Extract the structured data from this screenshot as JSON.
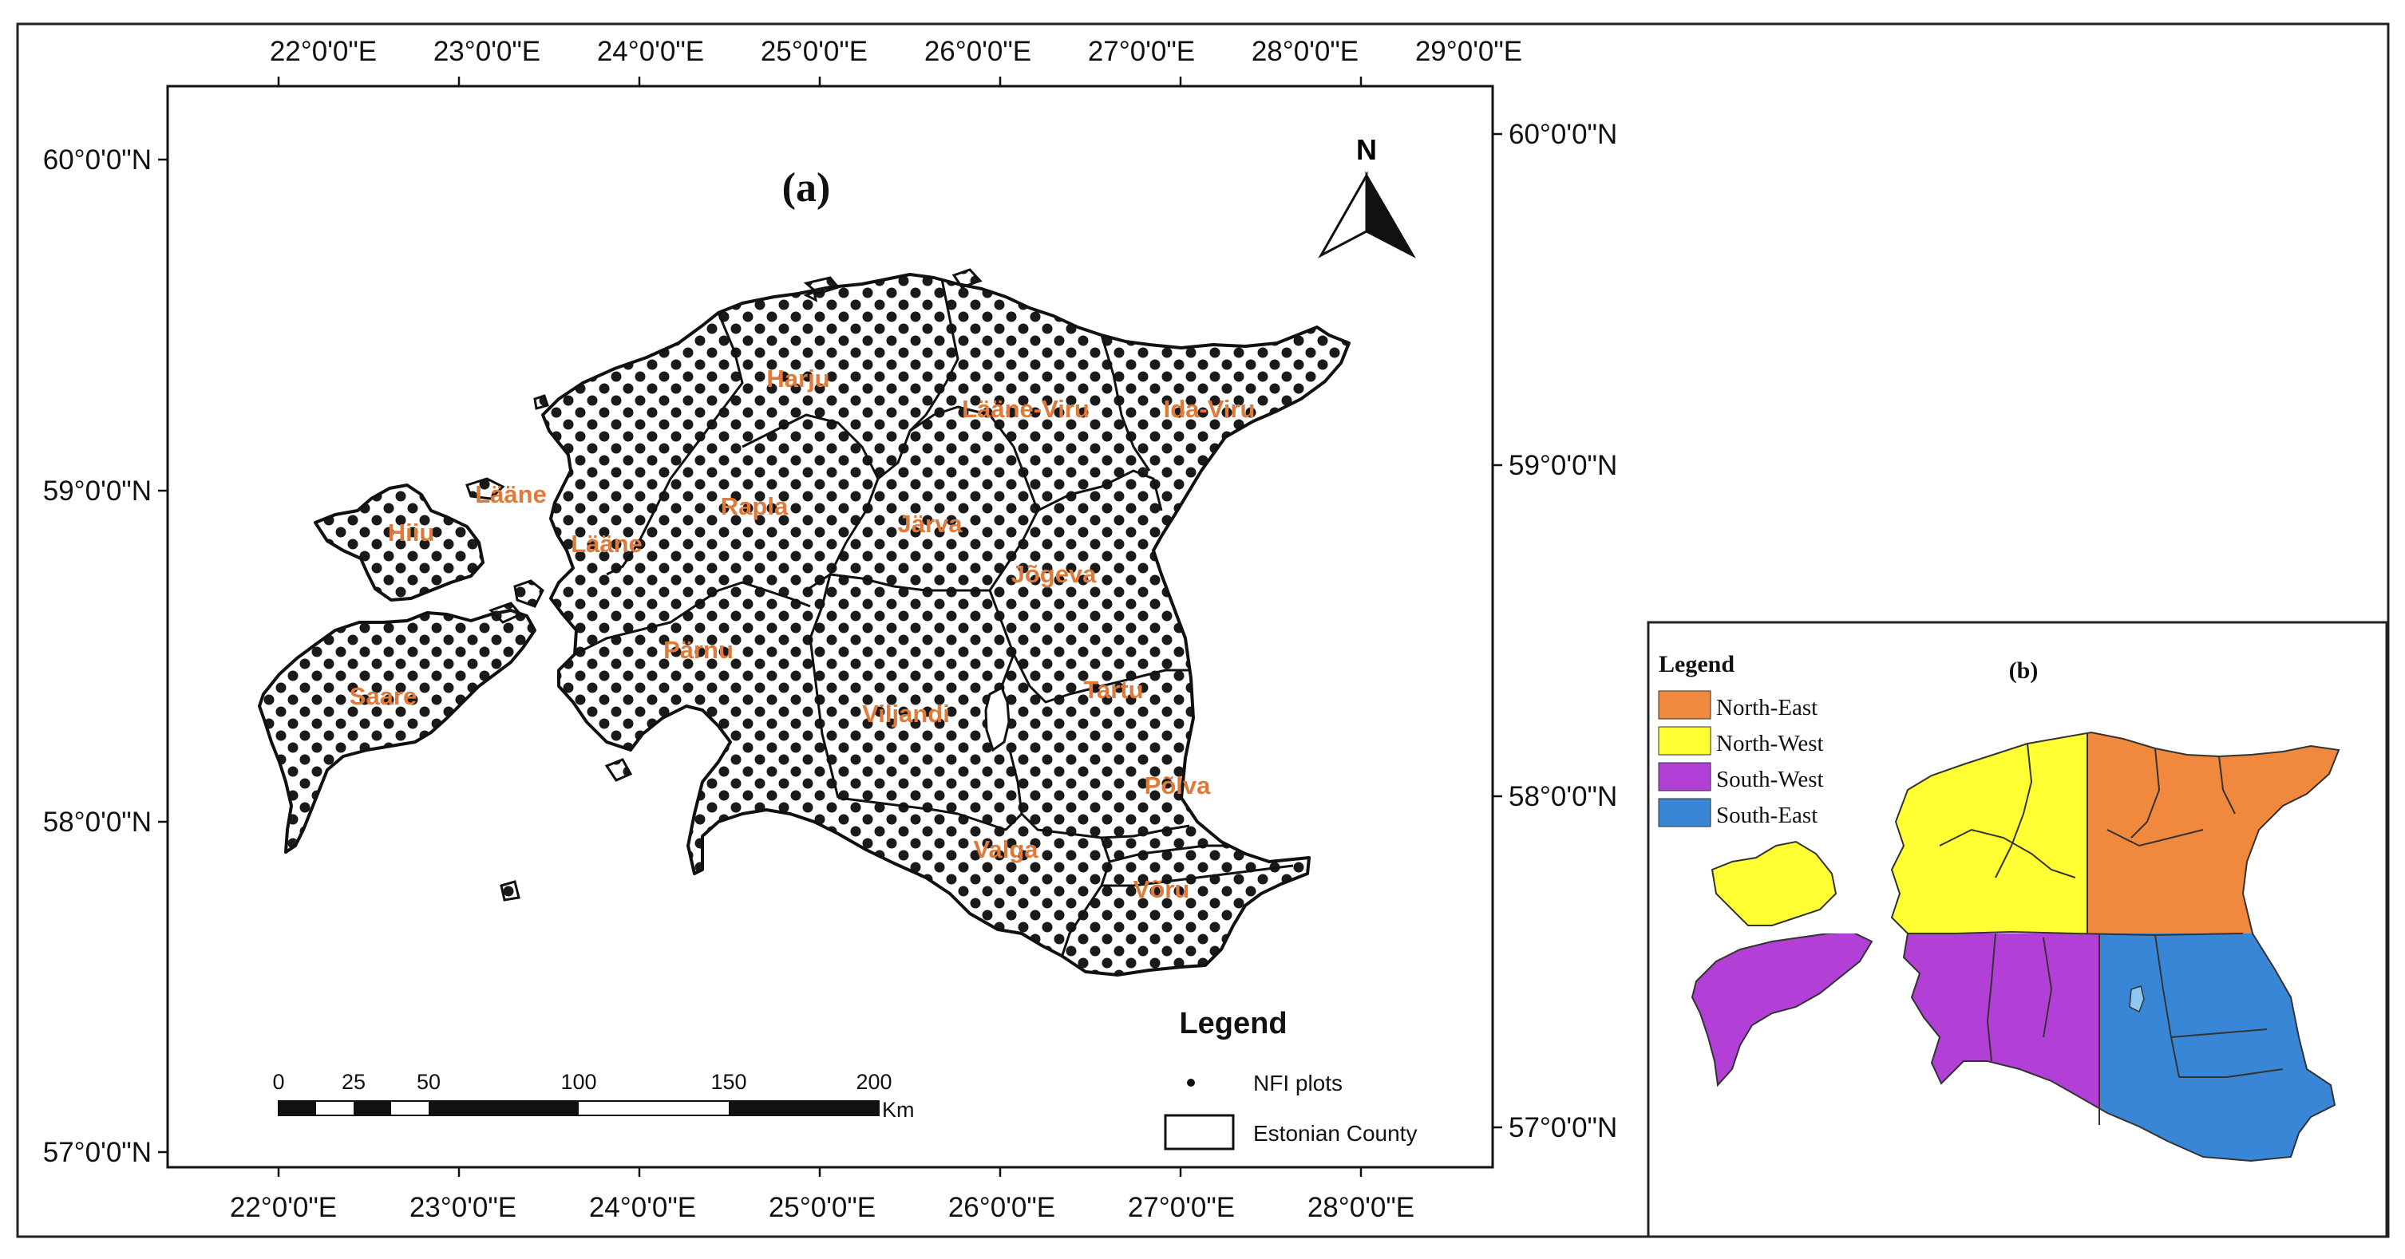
{
  "panel_a": {
    "label": "(a)",
    "north_label": "N",
    "top_lon_ticks": [
      "22°0'0\"E",
      "23°0'0\"E",
      "24°0'0\"E",
      "25°0'0\"E",
      "26°0'0\"E",
      "27°0'0\"E",
      "28°0'0\"E",
      "29°0'0\"E"
    ],
    "bottom_lon_ticks": [
      "22°0'0\"E",
      "23°0'0\"E",
      "24°0'0\"E",
      "25°0'0\"E",
      "26°0'0\"E",
      "27°0'0\"E",
      "28°0'0\"E"
    ],
    "left_lat_ticks": [
      "60°0'0\"N",
      "59°0'0\"N",
      "58°0'0\"N",
      "57°0'0\"N"
    ],
    "right_lat_ticks": [
      "60°0'0\"N",
      "59°0'0\"N",
      "58°0'0\"N",
      "57°0'0\"N"
    ],
    "counties": [
      "Harju",
      "Lääne-Viru",
      "Ida-Viru",
      "Lääne",
      "Hiiu",
      "Lääne",
      "Rapla",
      "Järva",
      "Jõgeva",
      "Pärnu",
      "Saare",
      "Viljandi",
      "Tartu",
      "Põlva",
      "Valga",
      "Võru"
    ],
    "scale_bar": {
      "labels": [
        "0",
        "25",
        "50",
        "100",
        "150",
        "200"
      ],
      "unit": "Km"
    },
    "legend": {
      "title": "Legend",
      "items": [
        "NFI plots",
        "Estonian County"
      ]
    }
  },
  "panel_b": {
    "label": "(b)",
    "legend_title": "Legend",
    "regions": [
      {
        "name": "North-East",
        "color": "#f0883e"
      },
      {
        "name": "North-West",
        "color": "#ffff33"
      },
      {
        "name": "South-West",
        "color": "#b23fd6"
      },
      {
        "name": "South-East",
        "color": "#3a86d6"
      }
    ]
  }
}
